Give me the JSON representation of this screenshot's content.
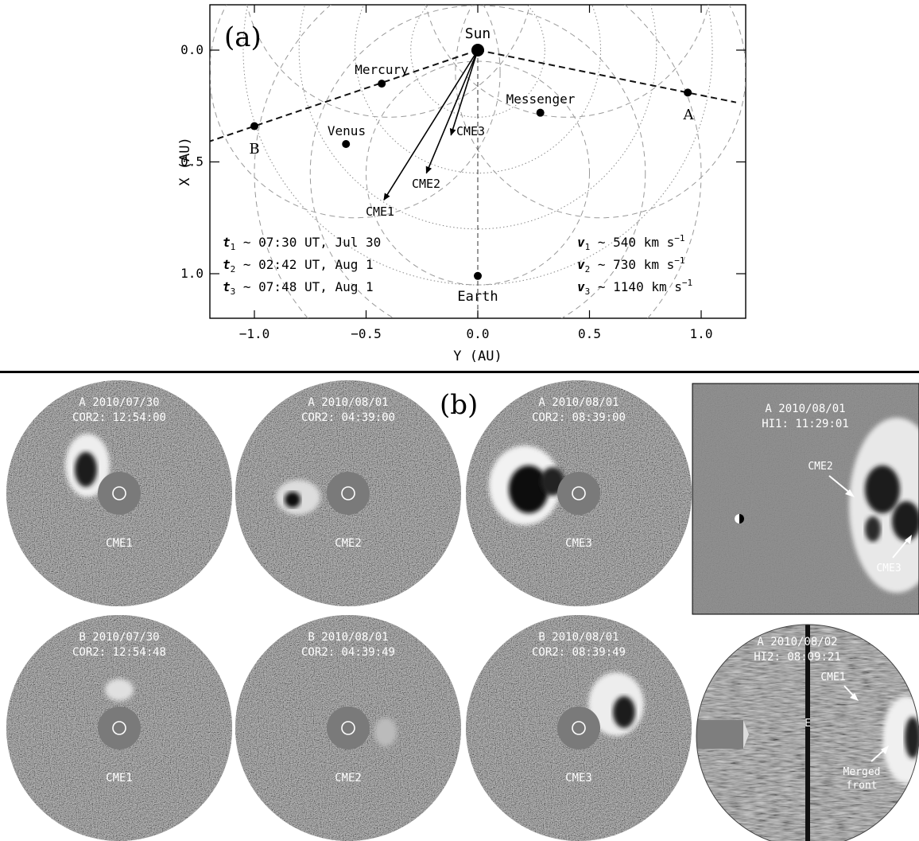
{
  "panel_a": {
    "label": "(a)",
    "xlabel": "Y (AU)",
    "ylabel": "X (AU)",
    "x_ticks": [
      "−1.0",
      "−0.5",
      "0.0",
      "0.5",
      "1.0"
    ],
    "x_tick_values": [
      -1.0,
      -0.5,
      0.0,
      0.5,
      1.0
    ],
    "y_ticks": [
      "0.0",
      "0.5",
      "1.0"
    ],
    "y_tick_values": [
      0.0,
      0.5,
      1.0
    ],
    "xlim": [
      -1.2,
      1.2
    ],
    "ylim": [
      -0.2,
      1.2
    ],
    "bodies": [
      {
        "name": "Sun",
        "y": 0.0,
        "x": 0.0
      },
      {
        "name": "Mercury",
        "y": -0.43,
        "x": 0.15
      },
      {
        "name": "Venus",
        "y": -0.59,
        "x": 0.42
      },
      {
        "name": "Messenger",
        "y": 0.28,
        "x": 0.28
      },
      {
        "name": "Earth",
        "y": 0.0,
        "x": 1.01
      },
      {
        "name": "A",
        "y": 0.94,
        "x": 0.19
      },
      {
        "name": "B",
        "y": -1.0,
        "x": 0.34
      }
    ],
    "cmes": [
      {
        "name": "CME1",
        "y": -0.42,
        "x": 0.67
      },
      {
        "name": "CME2",
        "y": -0.23,
        "x": 0.55
      },
      {
        "name": "CME3",
        "y": -0.12,
        "x": 0.38
      }
    ],
    "times": [
      {
        "sym": "t",
        "sub": "1",
        "text": "~ 07:30 UT, Jul 30"
      },
      {
        "sym": "t",
        "sub": "2",
        "text": "~ 02:42 UT, Aug 1"
      },
      {
        "sym": "t",
        "sub": "3",
        "text": "~ 07:48 UT, Aug 1"
      }
    ],
    "speeds": [
      {
        "sym": "v",
        "sub": "1",
        "value": "~ 540",
        "unit": "km s",
        "exp": "−1"
      },
      {
        "sym": "v",
        "sub": "2",
        "value": "~ 730",
        "unit": "km s",
        "exp": "−1"
      },
      {
        "sym": "v",
        "sub": "3",
        "value": "~ 1140",
        "unit": "km s",
        "exp": "−1"
      }
    ]
  },
  "panel_b": {
    "label": "(b)",
    "discs": [
      {
        "line1": "A 2010/07/30",
        "line2": "COR2: 12:54:00",
        "cme": "CME1"
      },
      {
        "line1": "A 2010/08/01",
        "line2": "COR2: 04:39:00",
        "cme": "CME2"
      },
      {
        "line1": "A 2010/08/01",
        "line2": "COR2: 08:39:00",
        "cme": "CME3"
      },
      {
        "line1": "B 2010/07/30",
        "line2": "COR2: 12:54:48",
        "cme": "CME1"
      },
      {
        "line1": "B 2010/08/01",
        "line2": "COR2: 04:39:49",
        "cme": "CME2"
      },
      {
        "line1": "B 2010/08/01",
        "line2": "COR2: 08:39:49",
        "cme": "CME3"
      }
    ],
    "hi1": {
      "line1": "A 2010/08/01",
      "line2": "HI1: 11:29:01",
      "labels": [
        "CME2",
        "CME3"
      ]
    },
    "hi2": {
      "line1": "A 2010/08/02",
      "line2": "HI2: 08:09:21",
      "labels": [
        "CME1",
        "Merged",
        "front"
      ],
      "marker": "E"
    }
  }
}
